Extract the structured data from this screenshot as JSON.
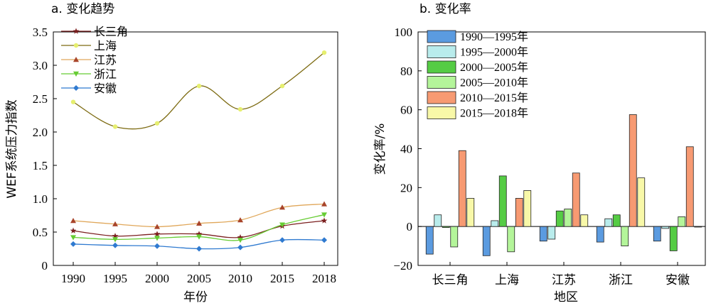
{
  "chart_data": [
    {
      "type": "line",
      "title": "a. 变化趋势",
      "xlabel": "年份",
      "ylabel": "WEF系统压力指数",
      "ylim": [
        0,
        3.5
      ],
      "x": [
        1990,
        1995,
        2000,
        2005,
        2010,
        2015,
        2018
      ],
      "yticks": [
        "0",
        "0.5",
        "1.0",
        "1.5",
        "2.0",
        "2.5",
        "3.0",
        "3.5"
      ],
      "legend_position": "top-left",
      "series": [
        {
          "name": "长三角",
          "color": "#7b1f1f",
          "marker": "star",
          "values": [
            0.52,
            0.44,
            0.47,
            0.47,
            0.42,
            0.59,
            0.67
          ]
        },
        {
          "name": "上海",
          "color": "#7d6b12",
          "marker": "circle",
          "marker_color": "#e6ef6f",
          "values": [
            2.45,
            2.08,
            2.13,
            2.69,
            2.34,
            2.69,
            3.19
          ]
        },
        {
          "name": "江苏",
          "color": "#e0a75a",
          "marker": "triangle-up",
          "marker_color": "#a8442a",
          "values": [
            0.67,
            0.62,
            0.58,
            0.63,
            0.68,
            0.87,
            0.92
          ]
        },
        {
          "name": "浙江",
          "color": "#66cc33",
          "marker": "triangle-down",
          "marker_color": "#66cc33",
          "values": [
            0.42,
            0.39,
            0.41,
            0.43,
            0.38,
            0.61,
            0.76
          ]
        },
        {
          "name": "安徽",
          "color": "#2f7ad0",
          "marker": "diamond",
          "marker_color": "#2f7ad0",
          "values": [
            0.32,
            0.3,
            0.29,
            0.25,
            0.27,
            0.38,
            0.38
          ]
        }
      ]
    },
    {
      "type": "bar",
      "title": "b. 变化率",
      "xlabel": "地区",
      "ylabel": "变化率/%",
      "ylim": [
        -20,
        100
      ],
      "yticks": [
        "−20",
        "0",
        "20",
        "40",
        "60",
        "80",
        "100"
      ],
      "categories": [
        "长三角",
        "上海",
        "江苏",
        "浙江",
        "安徽"
      ],
      "legend_position": "top-left",
      "series": [
        {
          "name": "1990—1995年",
          "color": "#5b9be0",
          "values": [
            -14.2,
            -15.0,
            -7.5,
            -8.0,
            -7.5
          ]
        },
        {
          "name": "1995—2000年",
          "color": "#b9ecec",
          "values": [
            6.0,
            3.0,
            -6.5,
            4.0,
            -1.0
          ]
        },
        {
          "name": "2000—2005年",
          "color": "#55cc44",
          "values": [
            -0.5,
            26.0,
            8.0,
            6.0,
            -12.5
          ]
        },
        {
          "name": "2005—2010年",
          "color": "#b4f59a",
          "values": [
            -10.5,
            -13.0,
            9.0,
            -10.0,
            5.0
          ]
        },
        {
          "name": "2010—2015年",
          "color": "#f79a72",
          "values": [
            39.0,
            14.5,
            27.5,
            57.5,
            41.0
          ]
        },
        {
          "name": "2015—2018年",
          "color": "#f8f8a8",
          "values": [
            14.5,
            18.5,
            6.0,
            25.0,
            -0.3
          ]
        }
      ]
    }
  ]
}
